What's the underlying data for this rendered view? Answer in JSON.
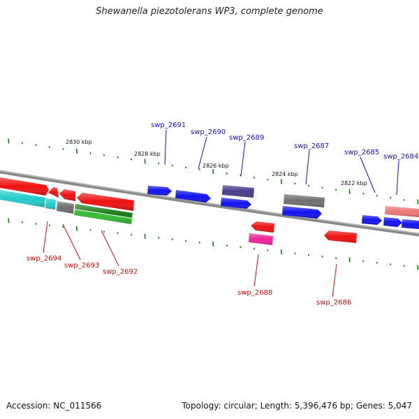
{
  "header": {
    "title": "Shewanella piezotolerans WP3, complete genome"
  },
  "footer": {
    "accession": "Accession: NC_011566",
    "summary": "Topology: circular; Length: 5,396,476 bp; Genes: 5,047"
  },
  "scale_labels": [
    "2830 kbp",
    "2828 kbp",
    "2826 kbp",
    "2824 kbp",
    "2822 kbp"
  ],
  "gene_labels": {
    "forward": [
      "swp_2691",
      "swp_2690",
      "swp_2689",
      "swp_2687",
      "swp_2685",
      "swp_2684"
    ],
    "reverse": [
      "swp_2694",
      "swp_2693",
      "swp_2692",
      "swp_2688",
      "swp_2686"
    ]
  },
  "colors": {
    "forward_label": "#1010cc",
    "reverse_label": "#cc1010",
    "backbone": "#888888",
    "tick": "#1a7a1a",
    "red": "#ee1111",
    "blue": "#1111ee",
    "gray": "#707070",
    "purple": "#4a3c8c",
    "cyan": "#22cccc",
    "green": "#22aa22",
    "pink": "#ee2299",
    "salmon": "#ee7777"
  }
}
